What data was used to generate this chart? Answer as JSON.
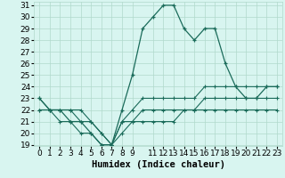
{
  "xlabel": "Humidex (Indice chaleur)",
  "hours": [
    0,
    1,
    2,
    3,
    4,
    5,
    6,
    7,
    8,
    9,
    10,
    11,
    12,
    13,
    14,
    15,
    16,
    17,
    18,
    19,
    20,
    21,
    22,
    23
  ],
  "line_main": [
    23,
    22,
    22,
    21,
    21,
    20,
    19,
    19,
    22,
    25,
    29,
    30,
    31,
    31,
    29,
    28,
    29,
    29,
    26,
    24,
    23,
    23,
    24,
    24
  ],
  "line_min": [
    22,
    22,
    21,
    21,
    20,
    20,
    19,
    19,
    20,
    21,
    21,
    21,
    21,
    21,
    22,
    22,
    22,
    22,
    22,
    22,
    22,
    22,
    22,
    22
  ],
  "line_max": [
    23,
    22,
    22,
    22,
    22,
    21,
    20,
    19,
    21,
    22,
    23,
    23,
    23,
    23,
    23,
    23,
    24,
    24,
    24,
    24,
    24,
    24,
    24,
    24
  ],
  "line_avg": [
    22,
    22,
    22,
    22,
    21,
    21,
    20,
    19,
    21,
    21,
    22,
    22,
    22,
    22,
    22,
    22,
    23,
    23,
    23,
    23,
    23,
    23,
    23,
    23
  ],
  "color": "#1a6b5a",
  "bg_color": "#d8f5f0",
  "grid_color": "#b0d9cc",
  "ylim": [
    19,
    31
  ],
  "yticks": [
    19,
    20,
    21,
    22,
    23,
    24,
    25,
    26,
    27,
    28,
    29,
    30,
    31
  ],
  "xticks": [
    0,
    1,
    2,
    3,
    4,
    5,
    6,
    7,
    8,
    9,
    11,
    12,
    13,
    14,
    15,
    16,
    17,
    18,
    19,
    20,
    21,
    22,
    23
  ],
  "tick_fontsize": 6.5,
  "label_fontsize": 7.5
}
